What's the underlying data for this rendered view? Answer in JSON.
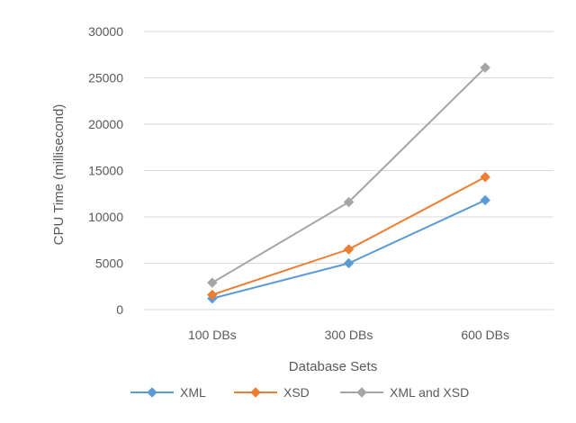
{
  "chart_data": {
    "type": "line",
    "title": "",
    "xlabel": "Database Sets",
    "ylabel": "CPU Time  (millisecond)",
    "categories": [
      "100 DBs",
      "300 DBs",
      "600 DBs"
    ],
    "ylim": [
      0,
      30000
    ],
    "yticks": [
      0,
      5000,
      10000,
      15000,
      20000,
      25000,
      30000
    ],
    "ytick_labels": [
      "0",
      "5000",
      "10000",
      "15000",
      "20000",
      "25000",
      "30000"
    ],
    "grid": "horizontal",
    "legend_position": "bottom",
    "series": [
      {
        "name": "XML",
        "color": "#5B9BD5",
        "marker": "diamond",
        "values": [
          1200,
          5000,
          11800
        ]
      },
      {
        "name": "XSD",
        "color": "#ED7D31",
        "marker": "diamond",
        "values": [
          1600,
          6500,
          14300
        ]
      },
      {
        "name": "XML and XSD",
        "color": "#A5A5A5",
        "marker": "diamond",
        "values": [
          2900,
          11600,
          26100
        ]
      }
    ]
  }
}
